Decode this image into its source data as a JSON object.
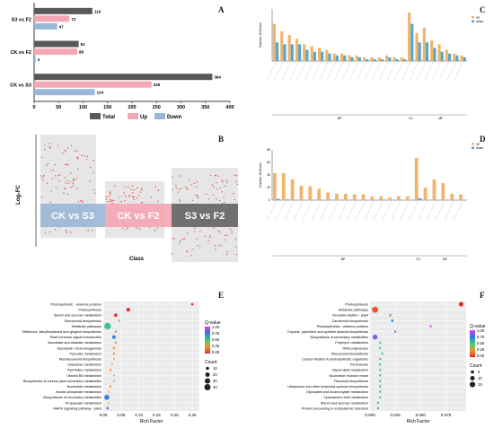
{
  "panels": {
    "A": "A",
    "B": "B",
    "C": "C",
    "D": "D",
    "E": "E",
    "F": "F"
  },
  "chart_data": [
    {
      "panel": "A",
      "type": "bar",
      "orientation": "horizontal",
      "categories": [
        "CK vs S3",
        "CK vs F2",
        "S3 vs F2"
      ],
      "series": [
        {
          "name": "Total",
          "color": "#595959",
          "values": [
            364,
            91,
            119
          ]
        },
        {
          "name": "Up",
          "color": "#f4a7b4",
          "values": [
            240,
            88,
            72
          ]
        },
        {
          "name": "Down",
          "color": "#9bb7d8",
          "values": [
            124,
            3,
            47
          ]
        }
      ],
      "xticks": [
        "0",
        "50",
        "100",
        "150",
        "200",
        "250",
        "300",
        "350",
        "400"
      ],
      "xlim": [
        0,
        400
      ]
    },
    {
      "panel": "B",
      "type": "scatter",
      "ylabel": "Log₂FC",
      "xlabel": "Class",
      "groups": [
        {
          "name": "CK vs S3",
          "color": "#9bb7d8"
        },
        {
          "name": "CK vs F2",
          "color": "#f4a7b4"
        },
        {
          "name": "S3 vs F2",
          "color": "#666666"
        }
      ]
    },
    {
      "panel": "C",
      "type": "bar",
      "legend": [
        "up",
        "down"
      ],
      "colors": {
        "up": "#f0b46a",
        "down": "#5aa6c9"
      },
      "ylabel": "Number of Genes",
      "groups": [
        "BP",
        "CC",
        "MF"
      ],
      "up": [
        20,
        16,
        14,
        12,
        9,
        8,
        7,
        6,
        4,
        4,
        3,
        3,
        2,
        2,
        2,
        3,
        2,
        2,
        26,
        15,
        18,
        11,
        9,
        6,
        4,
        3
      ],
      "down": [
        10,
        9,
        9,
        9,
        6,
        5,
        5,
        4,
        3,
        3,
        2,
        2,
        1,
        1,
        1,
        2,
        1,
        1,
        20,
        10,
        10,
        7,
        5,
        4,
        3,
        2
      ]
    },
    {
      "panel": "D",
      "type": "bar",
      "legend": [
        "up",
        "down"
      ],
      "colors": {
        "up": "#f0b46a",
        "down": "#5aa6c9"
      },
      "ylabel": "Number of Genes",
      "yticks": [
        "0",
        "20",
        "40",
        "60",
        "80"
      ],
      "ylim": [
        0,
        80
      ],
      "groups": [
        "BP",
        "CC",
        "MF"
      ],
      "up": [
        43,
        43,
        33,
        23,
        22,
        18,
        12,
        10,
        10,
        9,
        9,
        6,
        6,
        4,
        6,
        6,
        67,
        20,
        33,
        27,
        10,
        9
      ],
      "down": [
        2,
        1,
        0,
        0,
        0,
        0,
        0,
        0,
        0,
        0,
        0,
        0,
        0,
        0,
        0,
        0,
        3,
        0,
        0,
        0,
        0,
        0
      ]
    },
    {
      "panel": "E",
      "type": "scatter",
      "xlabel": "Rich Factor",
      "xticks": [
        "0.00",
        "0.05",
        "0.10",
        "0.15",
        "0.20",
        "0.25"
      ],
      "xlim": [
        0,
        0.27
      ],
      "legend_title_q": "Q-value",
      "q_ticks": [
        "1.00",
        "0.75",
        "0.50",
        "0.25",
        "0.00"
      ],
      "legend_title_count": "Count",
      "count_ticks": [
        "10",
        "20",
        "30",
        "40"
      ],
      "terms": [
        "Photosynthetic - antenna proteins",
        "Photosynthesis",
        "Starch and sucrose metabolism",
        "Diterpenoid biosynthesis",
        "Metabolic pathways",
        "Stilbenoid, diarylheptanoid and gingerol biosynthesis",
        "Plant hormone signal transduction",
        "Ascorbate and aldarate metabolism",
        "Glycolysis / Gluconeogenesis",
        "Pyruvate metabolism",
        "Monoterpenoid biosynthesis",
        "Galactose metabolism",
        "Pyrimidine metabolism",
        "Vitamin B6 metabolism",
        "Biosynthesis of various plant secondary metabolites",
        "Nucleotide metabolism",
        "Inositol phosphate metabolism",
        "Biosynthesis of secondary metabolites",
        "Propanoate metabolism",
        "MAPK signaling pathway - plant"
      ],
      "rich": [
        0.25,
        0.07,
        0.035,
        0.045,
        0.012,
        0.035,
        0.03,
        0.035,
        0.03,
        0.03,
        0.03,
        0.025,
        0.02,
        0.03,
        0.03,
        0.02,
        0.015,
        0.01,
        0.015,
        0.012
      ],
      "count": [
        6,
        14,
        12,
        4,
        45,
        3,
        15,
        4,
        5,
        4,
        2,
        3,
        4,
        2,
        3,
        4,
        2,
        25,
        2,
        6
      ],
      "q": [
        0.0,
        0.0,
        0.02,
        0.35,
        0.55,
        0.1,
        0.7,
        0.2,
        0.2,
        0.2,
        0.2,
        0.2,
        0.2,
        0.2,
        0.2,
        0.2,
        0.2,
        0.75,
        0.2,
        0.9
      ]
    },
    {
      "panel": "F",
      "type": "scatter",
      "xlabel": "Rich Factor",
      "xticks": [
        "0.000",
        "0.025",
        "0.050",
        "0.075"
      ],
      "xlim": [
        0,
        0.095
      ],
      "legend_title_q": "Q-value",
      "q_ticks": [
        "1.00",
        "0.75",
        "0.50",
        "0.25",
        "0.00"
      ],
      "legend_title_count": "Count",
      "count_ticks": [
        "5",
        "10",
        "15"
      ],
      "terms": [
        "Photosynthesis",
        "Metabolic pathways",
        "Circadian rhythm - plant",
        "Carotenoid biosynthesis",
        "Photosynthesis - antenna proteins",
        "Tropane, piperidine and pyridine alkaloid biosynthesis",
        "Biosynthesis of secondary metabolites",
        "Porphyrin metabolism",
        "RNA polymerase",
        "Diterpenoid biosynthesis",
        "Carbon fixation in photosynthetic organisms",
        "Peroxisome",
        "Glycerolipid metabolism",
        "Nucleotide excision repair",
        "Flavonoid biosynthesis",
        "Ubiquinone and other terpenoid-quinone biosynthesis",
        "Glyoxylate and dicarboxylate metabolism",
        "Cyanoamino acid metabolism",
        "Starch and sucrose metabolism",
        "Protein processing in endoplasmic reticulum"
      ],
      "rich": [
        0.09,
        0.005,
        0.02,
        0.022,
        0.06,
        0.025,
        0.005,
        0.01,
        0.01,
        0.012,
        0.01,
        0.01,
        0.01,
        0.01,
        0.01,
        0.01,
        0.01,
        0.01,
        0.008,
        0.008
      ],
      "count": [
        10,
        18,
        3,
        3,
        2,
        2,
        12,
        2,
        2,
        2,
        2,
        2,
        2,
        2,
        2,
        2,
        2,
        2,
        2,
        2
      ],
      "q": [
        0.0,
        0.1,
        0.4,
        0.7,
        1.0,
        0.9,
        0.85,
        0.6,
        0.6,
        0.6,
        0.6,
        0.6,
        0.6,
        0.6,
        0.6,
        0.6,
        0.6,
        0.6,
        0.6,
        0.6
      ]
    }
  ]
}
